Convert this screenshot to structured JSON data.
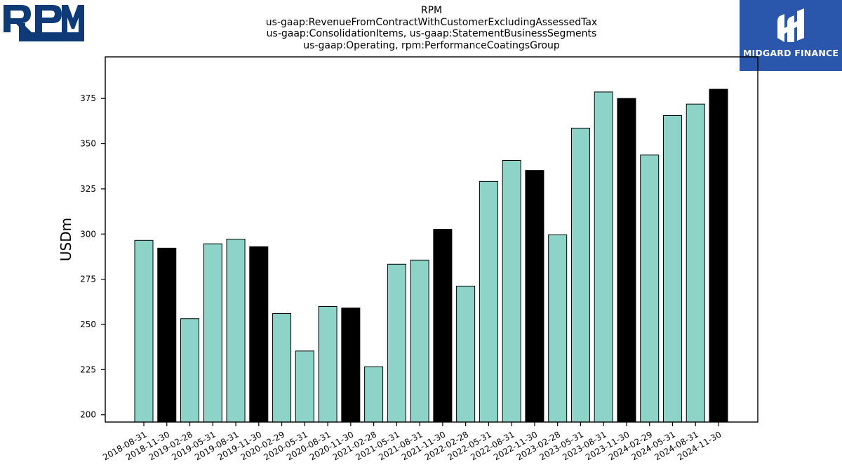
{
  "brand": {
    "company_logo_text": "RPM",
    "watermark_text": "MIDGARD FINANCE",
    "watermark_bg": "#2a57ac",
    "logo_color": "#0f3a78"
  },
  "chart_data": {
    "type": "bar",
    "title_lines": [
      "RPM",
      "us-gaap:RevenueFromContractWithCustomerExcludingAssessedTax",
      "us-gaap:ConsolidationItems, us-gaap:StatementBusinessSegments",
      "us-gaap:Operating, rpm:PerformanceCoatingsGroup"
    ],
    "xlabel": "",
    "ylabel": "USDm",
    "ylim": [
      196,
      398
    ],
    "yticks": [
      200,
      225,
      250,
      275,
      300,
      325,
      350,
      375
    ],
    "grid": false,
    "categories": [
      "2018-08-31",
      "2018-11-30",
      "2019-02-28",
      "2019-05-31",
      "2019-08-31",
      "2019-11-30",
      "2020-02-29",
      "2020-05-31",
      "2020-08-31",
      "2020-11-30",
      "2021-02-28",
      "2021-05-31",
      "2021-08-31",
      "2021-11-30",
      "2022-02-28",
      "2022-05-31",
      "2022-08-31",
      "2022-11-30",
      "2023-02-28",
      "2023-05-31",
      "2023-08-31",
      "2023-11-30",
      "2024-02-29",
      "2024-05-31",
      "2024-08-31",
      "2024-11-30"
    ],
    "values": [
      296.5,
      292.2,
      253.2,
      294.6,
      297.2,
      293.0,
      256.0,
      235.3,
      259.9,
      259.1,
      226.6,
      283.3,
      285.6,
      302.6,
      271.2,
      329.1,
      340.7,
      335.2,
      299.6,
      358.6,
      378.6,
      375.0,
      343.7,
      365.6,
      371.9,
      380.1
    ],
    "bar_colors": [
      "#8dd3c7",
      "#000000",
      "#8dd3c7",
      "#8dd3c7",
      "#8dd3c7",
      "#000000",
      "#8dd3c7",
      "#8dd3c7",
      "#8dd3c7",
      "#000000",
      "#8dd3c7",
      "#8dd3c7",
      "#8dd3c7",
      "#000000",
      "#8dd3c7",
      "#8dd3c7",
      "#8dd3c7",
      "#000000",
      "#8dd3c7",
      "#8dd3c7",
      "#8dd3c7",
      "#000000",
      "#8dd3c7",
      "#8dd3c7",
      "#8dd3c7",
      "#000000"
    ]
  }
}
